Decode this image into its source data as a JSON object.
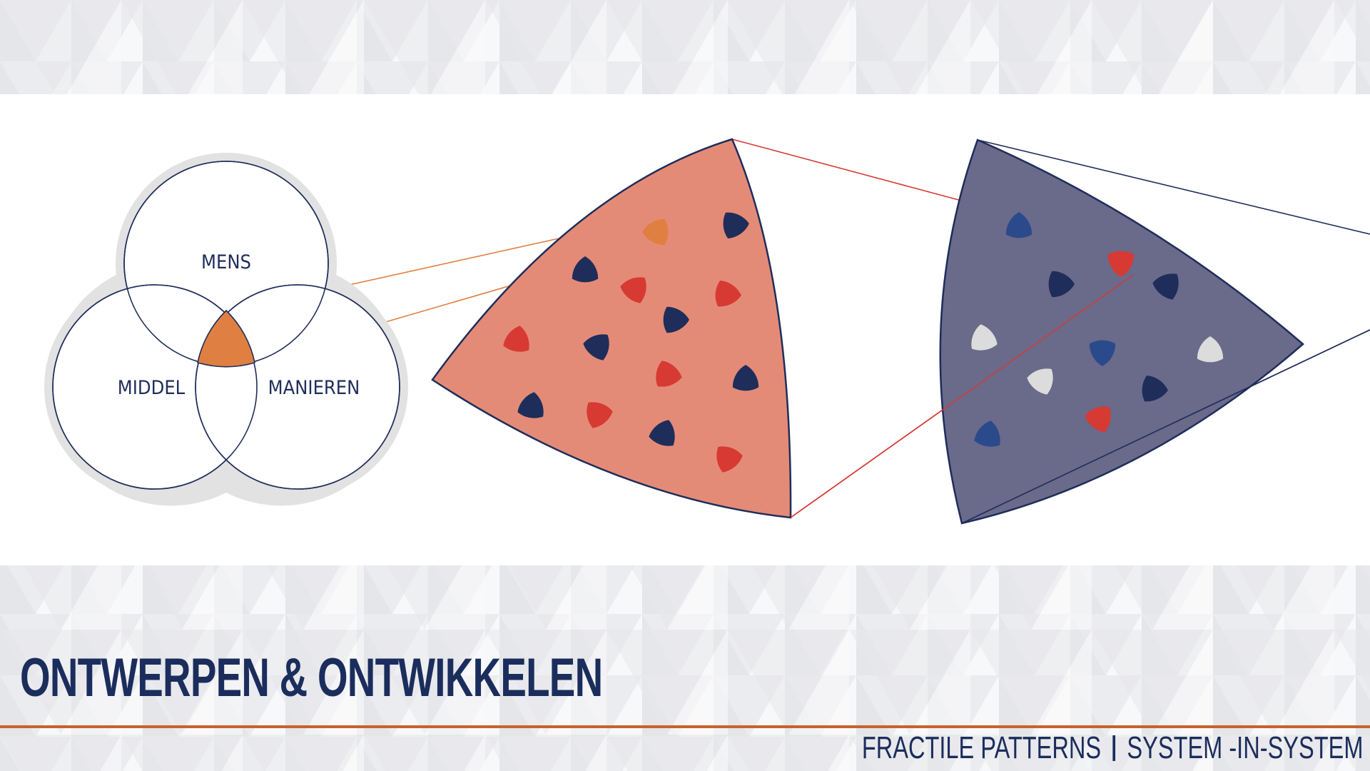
{
  "slide": {
    "title": "ONTWERPEN & ONTWIKKELEN",
    "footer_left": "FRACTILE PATTERNS",
    "footer_right": "SYSTEM -IN-SYSTEM"
  },
  "venn": {
    "labels": {
      "top": "MENS",
      "left": "MIDDEL",
      "right": "MANIEREN"
    }
  },
  "colors": {
    "navy": "#1f2d5a",
    "orange": "#e07f42",
    "salmon": "#e48b77",
    "slate": "#6a6a8b",
    "red": "#d63a33",
    "blue": "#2b4a8c",
    "light": "#dcdcdc",
    "accent_line": "#c8622c"
  }
}
